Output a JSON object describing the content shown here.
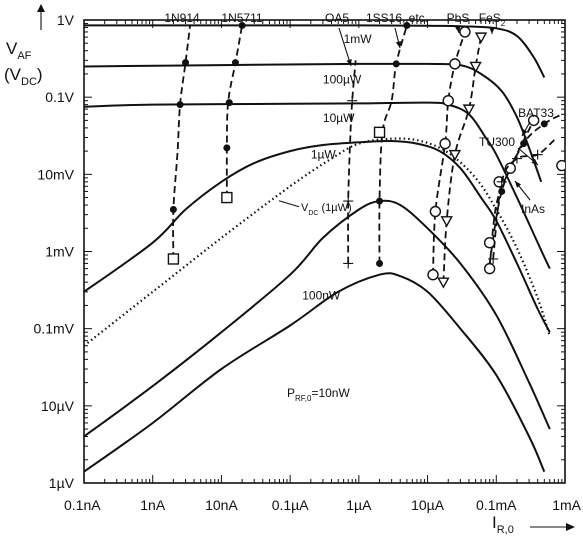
{
  "chart_data": {
    "type": "line",
    "title": "",
    "ylabel": "V",
    "ylabel_sub": "AF",
    "ylabel2": "(V",
    "ylabel2_sub": "DC",
    "ylabel2_close": ")",
    "xlabel": "I",
    "xlabel_sub": "R,0",
    "x_scale": "log",
    "y_scale": "log",
    "xlim": [
      1e-10,
      0.001
    ],
    "ylim": [
      1e-06,
      1
    ],
    "grid": false,
    "x_ticks": [
      {
        "value": 1e-10,
        "label": "0.1nA"
      },
      {
        "value": 1e-09,
        "label": "1nA"
      },
      {
        "value": 1e-08,
        "label": "10nA"
      },
      {
        "value": 1e-07,
        "label": "0.1µA"
      },
      {
        "value": 1e-06,
        "label": "1µA"
      },
      {
        "value": 1e-05,
        "label": "10µA"
      },
      {
        "value": 0.0001,
        "label": "0.1mA"
      },
      {
        "value": 0.001,
        "label": "1mA"
      }
    ],
    "y_ticks": [
      {
        "value": 1e-06,
        "label": "1µV"
      },
      {
        "value": 1e-05,
        "label": "10µV"
      },
      {
        "value": 0.0001,
        "label": "0.1mV"
      },
      {
        "value": 0.001,
        "label": "1mV"
      },
      {
        "value": 0.01,
        "label": "10mV"
      },
      {
        "value": 0.1,
        "label": "0.1V"
      },
      {
        "value": 1,
        "label": "1V"
      }
    ],
    "series": [
      {
        "name": "1mW",
        "style": "solid",
        "points": [
          [
            1e-10,
            0.85
          ],
          [
            1e-08,
            0.85
          ],
          [
            1e-06,
            0.85
          ],
          [
            1e-05,
            0.84
          ],
          [
            3e-05,
            0.83
          ],
          [
            0.0001,
            0.78
          ],
          [
            0.0002,
            0.62
          ],
          [
            0.00035,
            0.33
          ],
          [
            0.0005,
            0.18
          ]
        ]
      },
      {
        "name": "100µW",
        "style": "solid",
        "points": [
          [
            1e-10,
            0.25
          ],
          [
            1e-08,
            0.26
          ],
          [
            1e-06,
            0.27
          ],
          [
            1e-05,
            0.27
          ],
          [
            3e-05,
            0.26
          ],
          [
            6e-05,
            0.2
          ],
          [
            0.00012,
            0.12
          ],
          [
            0.0002,
            0.055
          ],
          [
            0.0003,
            0.022
          ],
          [
            0.00045,
            0.008
          ]
        ]
      },
      {
        "name": "10µW",
        "style": "solid",
        "points": [
          [
            1e-10,
            0.075
          ],
          [
            1e-09,
            0.08
          ],
          [
            1e-07,
            0.082
          ],
          [
            1e-06,
            0.083
          ],
          [
            1e-05,
            0.085
          ],
          [
            2e-05,
            0.08
          ],
          [
            4e-05,
            0.06
          ],
          [
            7e-05,
            0.03
          ],
          [
            0.0001,
            0.018
          ],
          [
            0.0002,
            0.005
          ],
          [
            0.0004,
            0.0013
          ],
          [
            0.0006,
            0.0006
          ]
        ]
      },
      {
        "name": "1µW",
        "style": "solid",
        "points": [
          [
            1e-10,
            0.0003
          ],
          [
            1e-09,
            0.0013
          ],
          [
            3e-09,
            0.0035
          ],
          [
            1e-08,
            0.008
          ],
          [
            3e-08,
            0.014
          ],
          [
            1e-07,
            0.02
          ],
          [
            3e-07,
            0.024
          ],
          [
            1e-06,
            0.026
          ],
          [
            3e-06,
            0.027
          ],
          [
            7e-06,
            0.025
          ],
          [
            1.5e-05,
            0.02
          ],
          [
            3e-05,
            0.012
          ],
          [
            6e-05,
            0.005
          ],
          [
            0.0001,
            0.0025
          ],
          [
            0.0002,
            0.0007
          ],
          [
            0.0004,
            0.00018
          ],
          [
            0.0006,
            9e-05
          ]
        ]
      },
      {
        "name": "100nW",
        "style": "solid",
        "points": [
          [
            1e-10,
            4e-06
          ],
          [
            1e-09,
            1.8e-05
          ],
          [
            1e-08,
            9e-05
          ],
          [
            1e-07,
            0.0005
          ],
          [
            3e-07,
            0.0015
          ],
          [
            1e-06,
            0.0035
          ],
          [
            2e-06,
            0.0045
          ],
          [
            4e-06,
            0.004
          ],
          [
            1e-05,
            0.002
          ],
          [
            3e-05,
            0.0007
          ],
          [
            0.0001,
            0.00015
          ],
          [
            0.0003,
            2e-05
          ],
          [
            0.0006,
            5e-06
          ]
        ]
      },
      {
        "name": "10nW",
        "style": "solid",
        "points": [
          [
            1e-10,
            1.4e-06
          ],
          [
            1e-09,
            6e-06
          ],
          [
            1e-08,
            3e-05
          ],
          [
            1e-07,
            0.00011
          ],
          [
            5e-07,
            0.0003
          ],
          [
            2e-06,
            0.0005
          ],
          [
            4e-06,
            0.00048
          ],
          [
            1e-05,
            0.0003
          ],
          [
            3e-05,
            0.0001
          ],
          [
            0.0001,
            2.5e-05
          ],
          [
            0.0003,
            4e-06
          ],
          [
            0.0005,
            1.4e-06
          ]
        ]
      },
      {
        "name": "V_DC (1µW)",
        "style": "dotted",
        "points": [
          [
            1e-10,
            6e-05
          ],
          [
            1e-09,
            0.0003
          ],
          [
            1e-08,
            0.0015
          ],
          [
            1e-07,
            0.007
          ],
          [
            4e-07,
            0.016
          ],
          [
            1e-06,
            0.025
          ],
          [
            3e-06,
            0.029
          ],
          [
            8e-06,
            0.027
          ],
          [
            2e-05,
            0.019
          ],
          [
            5e-05,
            0.009
          ],
          [
            0.0001,
            0.0035
          ],
          [
            0.0002,
            0.0011
          ],
          [
            0.0004,
            0.00025
          ],
          [
            0.0006,
            8e-05
          ]
        ]
      },
      {
        "name": "1N914",
        "style": "dashed",
        "marker": "open-square",
        "marker_points": [
          [
            2e-09,
            0.0008
          ]
        ],
        "dot_points": [
          [
            2e-09,
            0.0035
          ],
          [
            2.5e-09,
            0.08
          ],
          [
            3e-09,
            0.28
          ]
        ],
        "points": [
          [
            2e-09,
            0.0008
          ],
          [
            2e-09,
            0.0035
          ],
          [
            2.3e-09,
            0.02
          ],
          [
            2.5e-09,
            0.08
          ],
          [
            3e-09,
            0.28
          ],
          [
            3.5e-09,
            0.85
          ]
        ]
      },
      {
        "name": "1N5711",
        "style": "dashed",
        "marker": "open-square",
        "marker_points": [
          [
            1.2e-08,
            0.005
          ]
        ],
        "dot_points": [
          [
            1.2e-08,
            0.022
          ],
          [
            1.3e-08,
            0.085
          ],
          [
            1.6e-08,
            0.28
          ],
          [
            2e-08,
            0.85
          ]
        ],
        "points": [
          [
            1.2e-08,
            0.005
          ],
          [
            1.2e-08,
            0.022
          ],
          [
            1.25e-08,
            0.085
          ],
          [
            1.6e-08,
            0.28
          ],
          [
            2e-08,
            0.85
          ]
        ]
      },
      {
        "name": "OA5",
        "style": "dashed",
        "marker": "plus",
        "marker_points": [
          [
            7e-07,
            0.0007
          ],
          [
            7e-07,
            0.0045
          ],
          [
            8e-07,
            0.09
          ]
        ],
        "dot_points": [],
        "points": [
          [
            7e-07,
            0.0007
          ],
          [
            7e-07,
            0.0045
          ],
          [
            7.5e-07,
            0.03
          ],
          [
            8e-07,
            0.09
          ],
          [
            9e-07,
            0.3
          ]
        ]
      },
      {
        "name": "1SS16, etc.",
        "style": "dashed",
        "marker": "open-square",
        "marker_points": [
          [
            2e-06,
            0.035
          ]
        ],
        "dot_points": [
          [
            2e-06,
            0.0007
          ],
          [
            2e-06,
            0.0045
          ],
          [
            3.5e-06,
            0.27
          ],
          [
            5e-06,
            0.85
          ]
        ],
        "points": [
          [
            2e-06,
            0.0007
          ],
          [
            2e-06,
            0.0045
          ],
          [
            2.2e-06,
            0.035
          ],
          [
            3e-06,
            0.09
          ],
          [
            3.5e-06,
            0.27
          ],
          [
            5e-06,
            0.85
          ]
        ]
      },
      {
        "name": "PbS",
        "style": "dashed",
        "marker": "open-circle",
        "marker_points": [
          [
            1.2e-05,
            0.0005
          ],
          [
            1.3e-05,
            0.0033
          ],
          [
            1.8e-05,
            0.025
          ],
          [
            2e-05,
            0.09
          ],
          [
            2.5e-05,
            0.27
          ],
          [
            3.5e-05,
            0.7
          ]
        ],
        "dot_points": [],
        "points": [
          [
            1.2e-05,
            0.0005
          ],
          [
            1.3e-05,
            0.0033
          ],
          [
            1.8e-05,
            0.025
          ],
          [
            2e-05,
            0.09
          ],
          [
            2.5e-05,
            0.27
          ],
          [
            3.5e-05,
            0.7
          ]
        ]
      },
      {
        "name": "FeS2",
        "style": "dashed",
        "marker": "open-triangle",
        "marker_points": [
          [
            1.7e-05,
            0.0004
          ],
          [
            1.9e-05,
            0.0025
          ],
          [
            2.5e-05,
            0.018
          ],
          [
            4e-05,
            0.07
          ],
          [
            5e-05,
            0.25
          ],
          [
            6e-05,
            0.6
          ]
        ],
        "dot_points": [],
        "points": [
          [
            1.7e-05,
            0.0004
          ],
          [
            1.9e-05,
            0.0025
          ],
          [
            2.5e-05,
            0.018
          ],
          [
            4e-05,
            0.07
          ],
          [
            5e-05,
            0.25
          ],
          [
            6e-05,
            0.6
          ]
        ]
      },
      {
        "name": "BAT33",
        "style": "dashed",
        "marker": "solid-dot",
        "marker_points": [
          [
            0.00012,
            0.006
          ],
          [
            0.00025,
            0.025
          ],
          [
            0.0005,
            0.045
          ]
        ],
        "dot_points": [],
        "points": [
          [
            8e-05,
            0.0007
          ],
          [
            0.00012,
            0.006
          ],
          [
            0.00025,
            0.025
          ],
          [
            0.0005,
            0.045
          ],
          [
            0.0009,
            0.06
          ]
        ]
      },
      {
        "name": "TU300",
        "style": "dashed",
        "marker": "open-circle",
        "marker_points": [
          [
            8e-05,
            0.0006
          ],
          [
            8e-05,
            0.0013
          ],
          [
            0.00011,
            0.008
          ],
          [
            0.00016,
            0.012
          ],
          [
            0.00035,
            0.05
          ],
          [
            0.0009,
            0.013
          ]
        ],
        "dot_points": [],
        "points": [
          [
            8e-05,
            0.0006
          ],
          [
            0.0001,
            0.004
          ],
          [
            0.00016,
            0.012
          ],
          [
            0.00035,
            0.05
          ]
        ]
      },
      {
        "name": "InAs",
        "style": "dashed",
        "marker": "plus",
        "marker_points": [
          [
            9e-05,
            0.0008
          ],
          [
            0.00012,
            0.008
          ],
          [
            0.0002,
            0.016
          ],
          [
            0.0004,
            0.018
          ]
        ],
        "dot_points": [],
        "points": [
          [
            9e-05,
            0.0008
          ],
          [
            0.00012,
            0.008
          ],
          [
            0.0002,
            0.016
          ],
          [
            0.0004,
            0.018
          ],
          [
            0.0007,
            0.028
          ]
        ]
      }
    ],
    "curve_labels": [
      {
        "text": "1mW",
        "sub": "",
        "x": 6e-07,
        "y": 0.5
      },
      {
        "text": "100µW",
        "sub": "",
        "x": 3e-07,
        "y": 0.15
      },
      {
        "text": "10µW",
        "sub": "",
        "x": 3e-07,
        "y": 0.048
      },
      {
        "text": "1µW",
        "sub": "",
        "x": 2e-07,
        "y": 0.016
      },
      {
        "text": "100nW",
        "sub": "",
        "x": 1.5e-07,
        "y": 0.00024
      },
      {
        "text": "P",
        "sub": "RF,0",
        "after": "=10nW",
        "x": 9e-08,
        "y": 1.3e-05
      }
    ],
    "vdc_label": {
      "text": "V",
      "sub": "DC",
      "after": " (1µW)",
      "x": 9e-08,
      "y": 0.0038
    },
    "annotations": [
      {
        "text": "1N914",
        "sub": "",
        "after": "",
        "series": "1N914"
      },
      {
        "text": "1N5711",
        "sub": "",
        "after": "",
        "series": "1N5711"
      },
      {
        "text": "OA5",
        "sub": "",
        "after": "",
        "series": "OA5"
      },
      {
        "text": "1SS16, etc.",
        "sub": "",
        "after": "",
        "series": "1SS16, etc."
      },
      {
        "text": "PbS",
        "sub": "",
        "after": "",
        "series": "PbS"
      },
      {
        "text": "FeS",
        "sub": "2",
        "after": "",
        "series": "FeS2"
      },
      {
        "text": "BAT33",
        "sub": "",
        "after": "",
        "series": "BAT33"
      },
      {
        "text": "TU300",
        "sub": "",
        "after": "",
        "series": "TU300"
      },
      {
        "text": "InAs",
        "sub": "",
        "after": "",
        "series": "InAs"
      }
    ]
  }
}
